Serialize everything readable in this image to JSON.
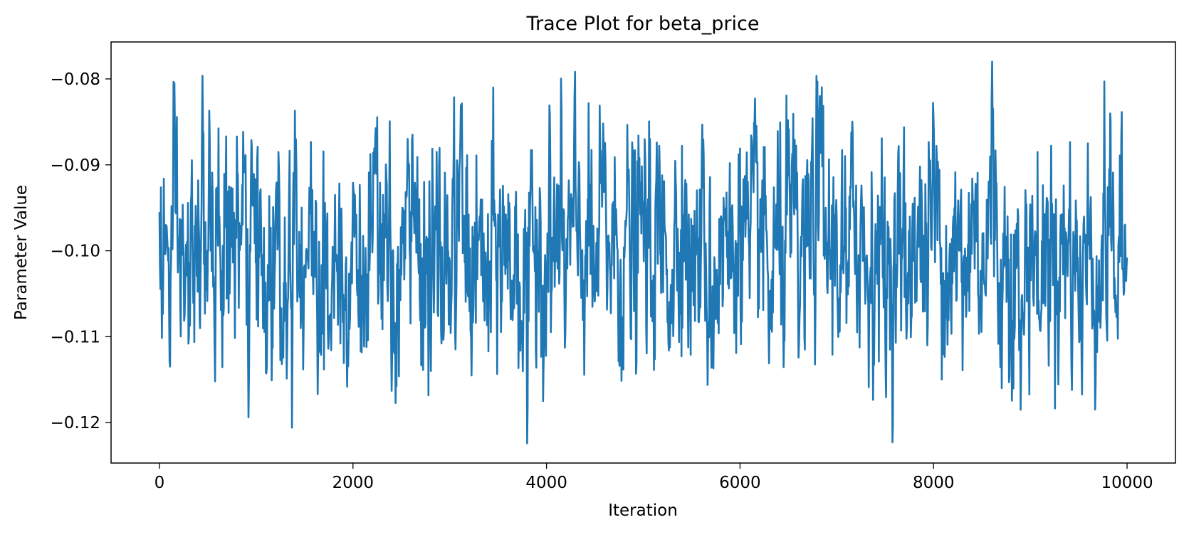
{
  "chart_data": {
    "type": "line",
    "title": "Trace Plot for beta_price",
    "xlabel": "Iteration",
    "ylabel": "Parameter Value",
    "xlim": [
      -500,
      10500
    ],
    "ylim": [
      -0.1247,
      -0.0757
    ],
    "x_ticks": [
      0,
      2000,
      4000,
      6000,
      8000,
      10000
    ],
    "x_tick_labels": [
      "0",
      "2000",
      "4000",
      "6000",
      "8000",
      "10000"
    ],
    "y_ticks": [
      -0.08,
      -0.09,
      -0.1,
      -0.11,
      -0.12
    ],
    "y_tick_labels": [
      "−0.08",
      "−0.09",
      "−0.10",
      "−0.11",
      "−0.12"
    ],
    "grid": false,
    "legend": "none",
    "series": [
      {
        "color": "#1f77b4",
        "n_samples": 10000,
        "mean": -0.1,
        "min": -0.1224,
        "max": -0.0778,
        "values_every_100": [
          -0.0955,
          -0.1072,
          -0.0985,
          -0.1108,
          -0.0918,
          -0.1003,
          -0.0967,
          -0.1042,
          -0.0867,
          -0.1086,
          -0.1012,
          -0.1142,
          -0.0962,
          -0.1055,
          -0.0837,
          -0.1017,
          -0.0978,
          -0.1138,
          -0.0996,
          -0.1051,
          -0.0921,
          -0.1074,
          -0.1002,
          -0.0969,
          -0.1163,
          -0.1028,
          -0.0955,
          -0.0992,
          -0.1087,
          -0.1004,
          -0.1012,
          -0.0905,
          -0.1051,
          -0.0987,
          -0.1117,
          -0.0958,
          -0.1044,
          -0.1001,
          -0.1224,
          -0.0964,
          -0.1015,
          -0.0982,
          -0.1048,
          -0.0925,
          -0.1006,
          -0.1059,
          -0.0887,
          -0.1032,
          -0.0996,
          -0.1011,
          -0.0943,
          -0.1071,
          -0.0968,
          -0.1022,
          -0.0878,
          -0.1047,
          -0.0989,
          -0.1096,
          -0.0961,
          -0.1028,
          -0.0881,
          -0.1055,
          -0.0975,
          -0.1131,
          -0.0998,
          -0.0912,
          -0.1067,
          -0.0994,
          -0.0803,
          -0.1041,
          -0.0967,
          -0.1084,
          -0.0924,
          -0.1012,
          -0.0969,
          -0.1091,
          -0.0933,
          -0.1054,
          -0.0975,
          -0.1011,
          -0.0845,
          -0.1026,
          -0.0971,
          -0.1139,
          -0.0916,
          -0.1052,
          -0.0826,
          -0.1062,
          -0.0981,
          -0.1185,
          -0.0946,
          -0.1092,
          -0.0987,
          -0.1031,
          -0.0952,
          -0.1077,
          -0.0993,
          -0.1041,
          -0.0926,
          -0.1068
        ]
      }
    ]
  }
}
